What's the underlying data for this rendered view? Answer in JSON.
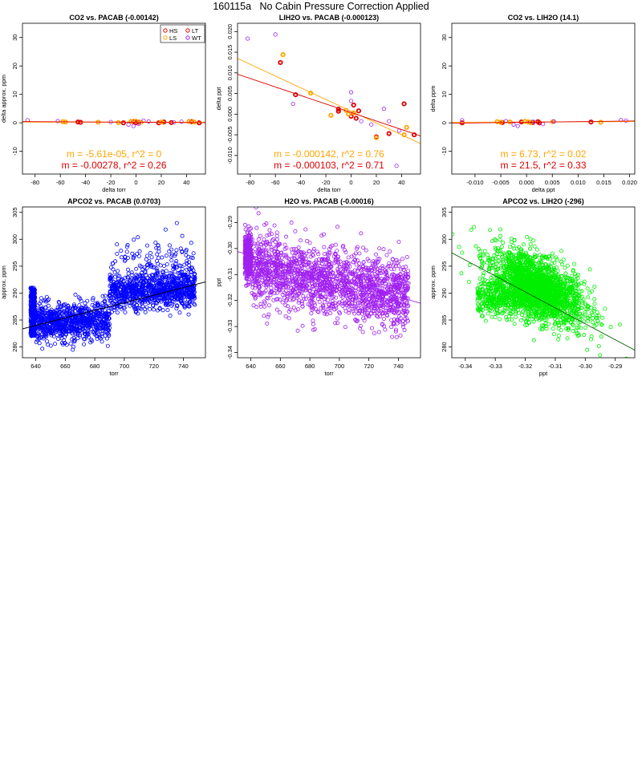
{
  "page": {
    "title": "160115a   No Cabin Pressure Correction Applied"
  },
  "legend": {
    "entries": [
      {
        "label": "HS",
        "color": "#dd0000"
      },
      {
        "label": "LT",
        "color": "#dd0000"
      },
      {
        "label": "LS",
        "color": "#ffa500"
      },
      {
        "label": "WT",
        "color": "#a020f0"
      }
    ]
  },
  "chart_data": [
    {
      "type": "scatter",
      "title": "CO2 vs. PACAB (-0.00142)",
      "xlabel": "delta torr",
      "ylabel": "delta approx. ppm",
      "xlim": [
        -90,
        55
      ],
      "ylim": [
        -18,
        35
      ],
      "xticks": [
        "-80",
        "-60",
        "-40",
        "-20",
        "0",
        "20",
        "40"
      ],
      "yticks": [
        "-10",
        "0",
        "10",
        "20",
        "30"
      ],
      "legend": "top-right",
      "series": [
        {
          "name": "HS",
          "color": "#dd0000",
          "x": [
            -46,
            -44,
            -10,
            -2,
            0,
            2,
            18,
            22,
            28,
            44,
            50
          ],
          "y": [
            0.3,
            0.2,
            0.0,
            0.4,
            0.1,
            0.2,
            0.0,
            0.3,
            0.1,
            0.4,
            0.0
          ]
        },
        {
          "name": "LS",
          "color": "#ffa500",
          "x": [
            -58,
            -56,
            -30,
            -14,
            -4,
            0,
            4,
            20,
            42,
            46
          ],
          "y": [
            0.4,
            0.3,
            0.2,
            0.1,
            0.5,
            0.6,
            0.2,
            0.3,
            0.5,
            0.3
          ]
        },
        {
          "name": "WT",
          "color": "#a020f0",
          "x": [
            -86,
            -62,
            -20,
            -6,
            -2,
            2,
            6,
            10,
            30,
            36
          ],
          "y": [
            0.9,
            0.6,
            0.3,
            -0.6,
            -1.1,
            -0.4,
            0.8,
            0.5,
            0.2,
            0.4
          ]
        }
      ],
      "fit_lines": [
        {
          "color": "#ffa500",
          "slope": -5.61e-05,
          "intercept": 0.25
        },
        {
          "color": "#dd0000",
          "slope": -0.00278,
          "intercept": 0.2
        }
      ],
      "annotations": [
        {
          "text": "m = -5.61e-05, r^2 = 0",
          "color": "#ffa500"
        },
        {
          "text": "m = -0.00278, r^2 = 0.26",
          "color": "#dd0000"
        }
      ]
    },
    {
      "type": "scatter",
      "title": "LIH2O vs. PACAB (-0.000123)",
      "xlabel": "delta torr",
      "ylabel": "delta ppt",
      "xlim": [
        -90,
        55
      ],
      "ylim": [
        -0.0145,
        0.022
      ],
      "xticks": [
        "-80",
        "-60",
        "-40",
        "-20",
        "0",
        "20",
        "40"
      ],
      "yticks": [
        "-0.010",
        "-0.005",
        "0.000",
        "0.005",
        "0.010",
        "0.015",
        "0.020"
      ],
      "series": [
        {
          "name": "HS",
          "color": "#dd0000",
          "x": [
            -56,
            -44,
            -10,
            -10,
            0,
            2,
            4,
            6,
            20,
            30,
            42,
            50
          ],
          "y": [
            0.0125,
            0.0047,
            0.0007,
            0.0012,
            -0.0005,
            0.0022,
            -0.001,
            0.0008,
            -0.0055,
            -0.0047,
            0.0025,
            -0.005
          ]
        },
        {
          "name": "LS",
          "color": "#ffa500",
          "x": [
            -54,
            -32,
            -16,
            -4,
            -2,
            2,
            20,
            42,
            44
          ],
          "y": [
            0.0144,
            0.0051,
            -0.0003,
            0.0009,
            0.0,
            0.0003,
            -0.0057,
            -0.005,
            -0.0032
          ]
        },
        {
          "name": "WT",
          "color": "#a020f0",
          "x": [
            -82,
            -60,
            -46,
            0,
            0,
            8,
            16,
            26,
            30,
            36,
            38
          ],
          "y": [
            0.0183,
            0.0193,
            0.0025,
            0.0053,
            0.0032,
            -0.0017,
            -0.0025,
            0.0013,
            -0.0017,
            -0.0125,
            -0.004
          ]
        }
      ],
      "fit_lines": [
        {
          "color": "#ffa500",
          "slope": -0.000142,
          "intercept": 0.0007
        },
        {
          "color": "#dd0000",
          "slope": -0.000103,
          "intercept": 0.0004
        }
      ],
      "annotations": [
        {
          "text": "m = -0.000142, r^2 = 0.76",
          "color": "#ffa500"
        },
        {
          "text": "m = -0.000103, r^2 = 0.71",
          "color": "#dd0000"
        }
      ]
    },
    {
      "type": "scatter",
      "title": "CO2 vs. LIH2O (14.1)",
      "xlabel": "delta ppt",
      "ylabel": "delta ppm",
      "xlim": [
        -0.0145,
        0.021
      ],
      "ylim": [
        -18,
        35
      ],
      "xticks": [
        "-0.010",
        "-0.005",
        "0.000",
        "0.005",
        "0.010",
        "0.015",
        "0.020"
      ],
      "yticks": [
        "-10",
        "0",
        "10",
        "20",
        "30"
      ],
      "series": [
        {
          "name": "HS",
          "color": "#dd0000",
          "x": [
            -0.0125,
            -0.005,
            -0.0047,
            -0.001,
            0.0007,
            0.0012,
            0.0022,
            0.0025,
            0.0125
          ],
          "y": [
            0.0,
            0.2,
            0.1,
            0.3,
            0.2,
            0.1,
            0.4,
            0.0,
            0.3
          ]
        },
        {
          "name": "LS",
          "color": "#ffa500",
          "x": [
            -0.0057,
            -0.005,
            -0.0032,
            -0.0003,
            0.0009,
            0.0003,
            0.0051,
            0.0144
          ],
          "y": [
            0.4,
            0.2,
            0.3,
            0.5,
            0.2,
            0.3,
            0.4,
            0.2
          ]
        },
        {
          "name": "WT",
          "color": "#a020f0",
          "x": [
            -0.0125,
            -0.004,
            -0.0025,
            -0.0017,
            0.0013,
            0.0032,
            0.0053,
            0.0183,
            0.0193
          ],
          "y": [
            0.9,
            0.6,
            -0.6,
            -1.1,
            0.4,
            -0.4,
            0.5,
            1.0,
            0.8
          ]
        }
      ],
      "fit_lines": [
        {
          "color": "#ffa500",
          "slope": 6.73,
          "intercept": 0.3
        },
        {
          "color": "#dd0000",
          "slope": 21.5,
          "intercept": 0.2
        }
      ],
      "annotations": [
        {
          "text": "m = 6.73, r^2 = 0.02",
          "color": "#ffa500"
        },
        {
          "text": "m = 21.5, r^2 = 0.33",
          "color": "#dd0000"
        }
      ]
    },
    {
      "type": "scatter",
      "title": "APCO2 vs. PACAB (0.0703)",
      "xlabel": "torr",
      "ylabel": "approx. ppm",
      "xlim": [
        631,
        755
      ],
      "ylim": [
        278,
        306
      ],
      "xticks": [
        "640",
        "660",
        "680",
        "700",
        "720",
        "740"
      ],
      "yticks": [
        "280",
        "285",
        "290",
        "295",
        "300",
        "305"
      ],
      "series": [
        {
          "color": "#0000ff",
          "generated": {
            "n": 2200,
            "seed": 11,
            "profile": "apco2_pacab"
          }
        }
      ],
      "fit_lines": [
        {
          "color": "#000000",
          "slope": 0.0703,
          "intercept": 239.0
        }
      ]
    },
    {
      "type": "scatter",
      "title": "H2O vs. PACAB (-0.00016)",
      "xlabel": "torr",
      "ylabel": "ppt",
      "xlim": [
        631,
        755
      ],
      "ylim": [
        -0.342,
        -0.284
      ],
      "xticks": [
        "640",
        "660",
        "680",
        "700",
        "720",
        "740"
      ],
      "yticks": [
        "-0.34",
        "-0.33",
        "-0.32",
        "-0.31",
        "-0.30",
        "-0.29"
      ],
      "series": [
        {
          "color": "#a020f0",
          "generated": {
            "n": 2200,
            "seed": 23,
            "profile": "h2o_pacab"
          }
        }
      ],
      "fit_lines": [
        {
          "color": "#a020f0",
          "slope": -0.00016,
          "intercept": -0.2002
        }
      ]
    },
    {
      "type": "scatter",
      "title": "APCO2 vs. LIH2O (-296)",
      "xlabel": "ppt",
      "ylabel": "approx. ppm",
      "xlim": [
        -0.3445,
        -0.2835
      ],
      "ylim": [
        278,
        306
      ],
      "xticks": [
        "-0.34",
        "-0.33",
        "-0.32",
        "-0.31",
        "-0.30",
        "-0.29"
      ],
      "yticks": [
        "280",
        "285",
        "290",
        "295",
        "300",
        "305"
      ],
      "series": [
        {
          "color": "#00ee00",
          "generated": {
            "n": 2600,
            "seed": 37,
            "profile": "apco2_lih2o"
          }
        }
      ],
      "fit_lines": [
        {
          "color": "#006400",
          "slope": -296,
          "intercept": 195.5
        }
      ]
    }
  ]
}
